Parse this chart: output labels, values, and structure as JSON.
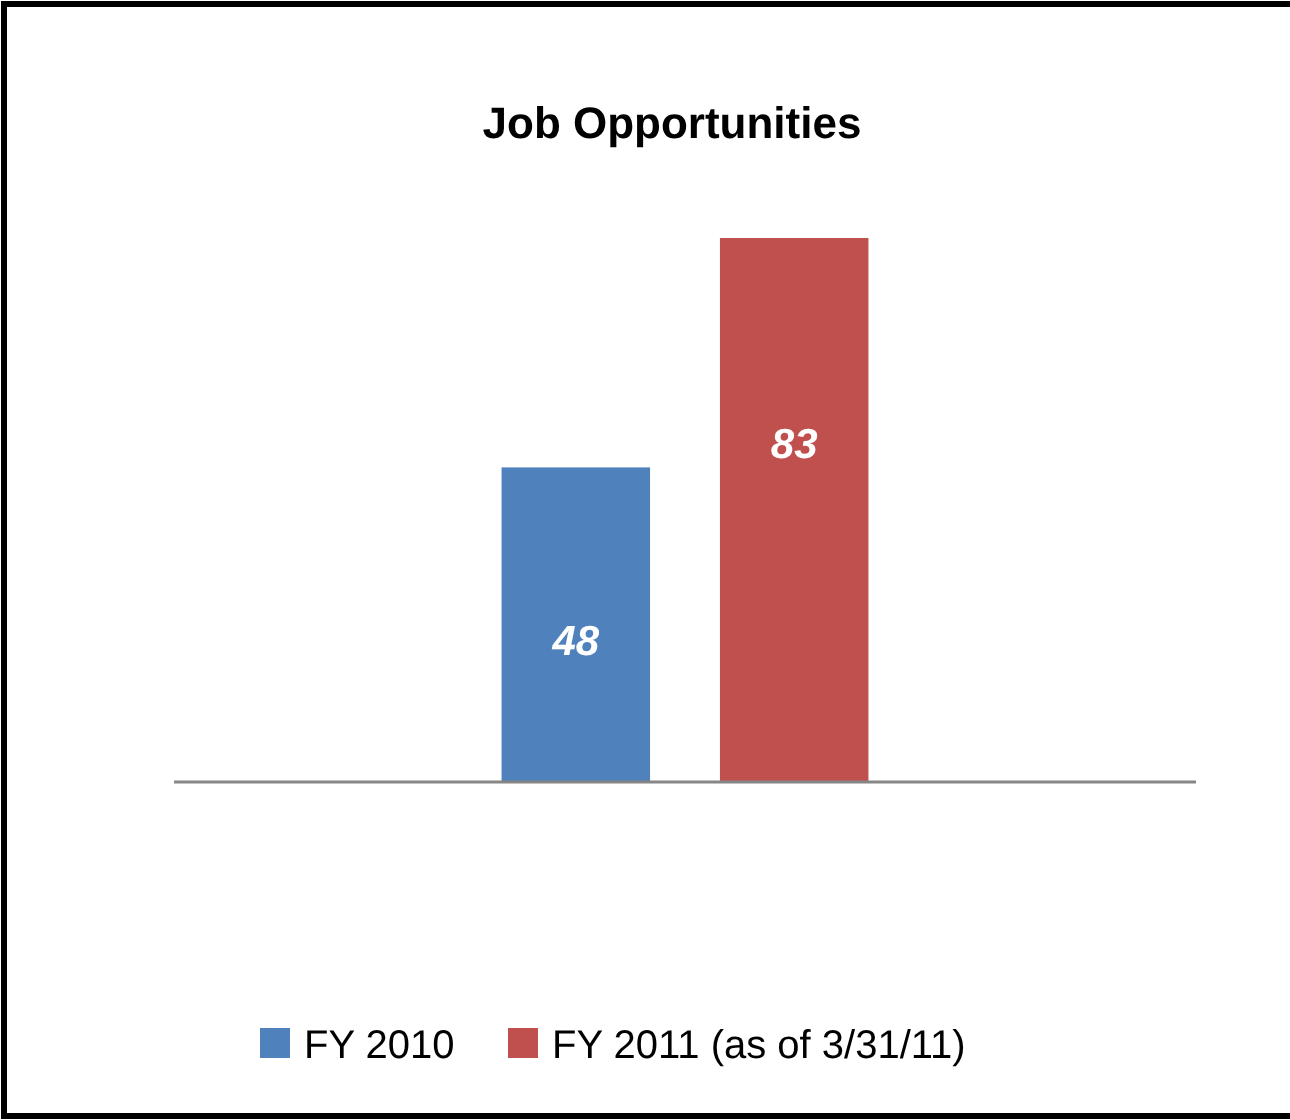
{
  "chart_data": {
    "type": "bar",
    "title": "Job Opportunities",
    "categories": [
      null
    ],
    "series": [
      {
        "name": "FY 2010",
        "color": "#4f81bd",
        "values": [
          48
        ]
      },
      {
        "name": "FY 2011 (as of 3/31/11)",
        "color": "#c0504d",
        "values": [
          83
        ]
      }
    ],
    "data_labels": true,
    "legend": "bottom",
    "grid": false
  }
}
